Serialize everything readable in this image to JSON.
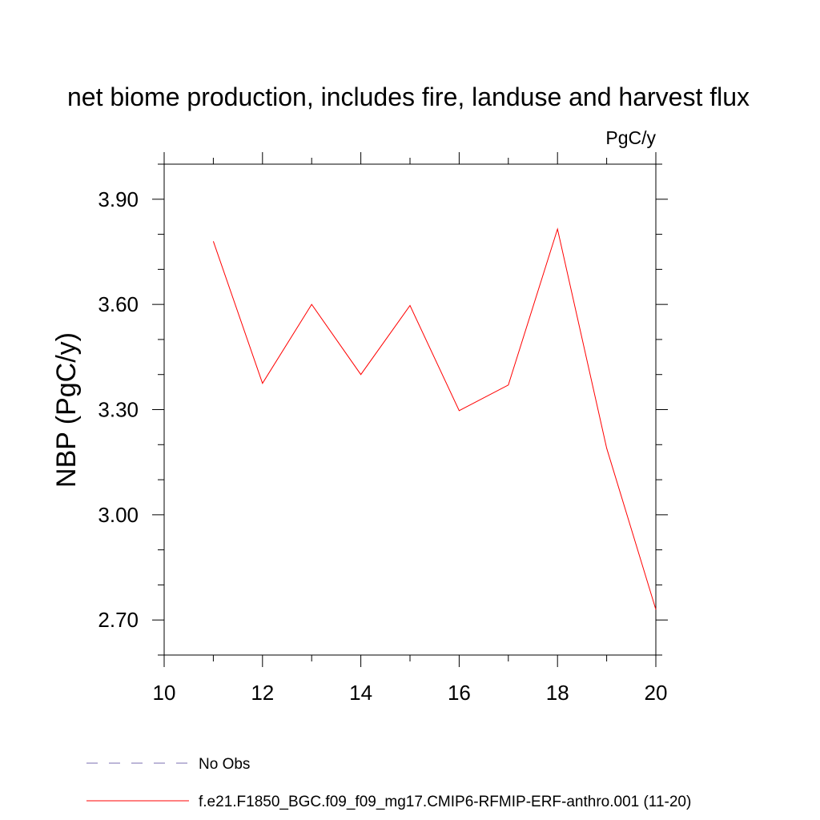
{
  "chart_data": {
    "type": "line",
    "title": "net biome production, includes fire, landuse and harvest flux",
    "units": "PgC/y",
    "ylabel": "NBP  (PgC/y)",
    "xlabel": "",
    "xlim": [
      10,
      20
    ],
    "ylim": [
      2.6,
      4.0
    ],
    "xticks": [
      10,
      12,
      14,
      16,
      18,
      20
    ],
    "yticks": [
      2.7,
      3.0,
      3.3,
      3.6,
      3.9
    ],
    "ytick_labels": [
      "2.70",
      "3.00",
      "3.30",
      "3.60",
      "3.90"
    ],
    "x_minor_step": 1,
    "y_minor_step": 0.1,
    "grid": false,
    "legend_position": "bottom",
    "x": [
      11,
      12,
      13,
      14,
      15,
      16,
      17,
      18,
      19,
      20
    ],
    "series": [
      {
        "name": "f.e21.F1850_BGC.f09_f09_mg17.CMIP6-RFMIP-ERF-anthro.001 (11-20)",
        "color": "#ff0000",
        "dash": "solid",
        "values": [
          3.78,
          3.375,
          3.6,
          3.4,
          3.597,
          3.297,
          3.37,
          3.815,
          3.19,
          2.73
        ]
      }
    ],
    "legend": [
      {
        "label": "No Obs",
        "color": "#7b6fb0",
        "dash": "dashed"
      },
      {
        "label": "f.e21.F1850_BGC.f09_f09_mg17.CMIP6-RFMIP-ERF-anthro.001 (11-20)",
        "color": "#ff0000",
        "dash": "solid"
      }
    ]
  }
}
